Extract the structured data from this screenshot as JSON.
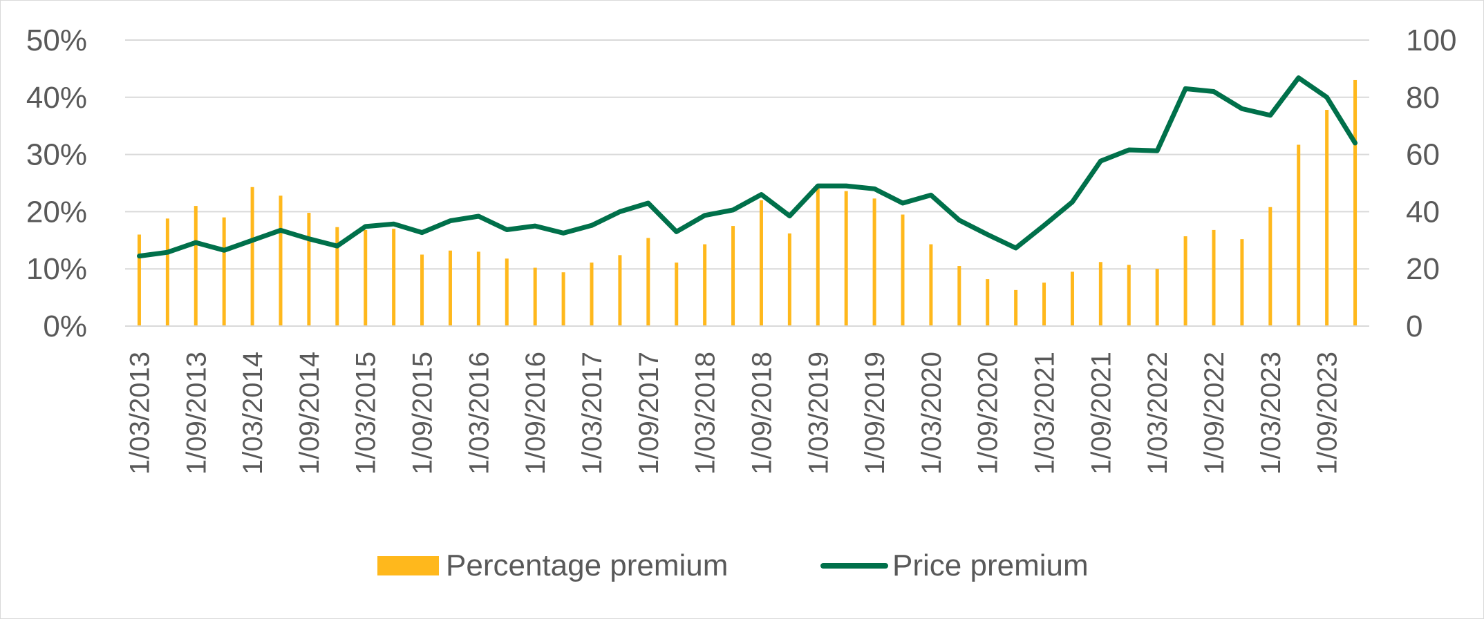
{
  "chart_data": {
    "type": "bar",
    "title": "",
    "xlabel": "",
    "ylabel": "",
    "y2label": "",
    "ylim": [
      0,
      0.5
    ],
    "y2lim": [
      0,
      100
    ],
    "y_ticks": [
      "0%",
      "10%",
      "20%",
      "30%",
      "40%",
      "50%"
    ],
    "y2_ticks": [
      "0",
      "20",
      "40",
      "60",
      "80",
      "100"
    ],
    "grid": true,
    "legend_position": "bottom",
    "x": [
      "1/03/2013",
      "1/06/2013",
      "1/09/2013",
      "1/12/2013",
      "1/03/2014",
      "1/06/2014",
      "1/09/2014",
      "1/12/2014",
      "1/03/2015",
      "1/06/2015",
      "1/09/2015",
      "1/12/2015",
      "1/03/2016",
      "1/06/2016",
      "1/09/2016",
      "1/12/2016",
      "1/03/2017",
      "1/06/2017",
      "1/09/2017",
      "1/12/2017",
      "1/03/2018",
      "1/06/2018",
      "1/09/2018",
      "1/12/2018",
      "1/03/2019",
      "1/06/2019",
      "1/09/2019",
      "1/12/2019",
      "1/03/2020",
      "1/06/2020",
      "1/09/2020",
      "1/12/2020",
      "1/03/2021",
      "1/06/2021",
      "1/09/2021",
      "1/12/2021",
      "1/03/2022",
      "1/06/2022",
      "1/09/2022",
      "1/12/2022",
      "1/03/2023",
      "1/06/2023",
      "1/09/2023",
      "1/12/2023"
    ],
    "x_tick_labels": [
      "1/03/2013",
      "1/09/2013",
      "1/03/2014",
      "1/09/2014",
      "1/03/2015",
      "1/09/2015",
      "1/03/2016",
      "1/09/2016",
      "1/03/2017",
      "1/09/2017",
      "1/03/2018",
      "1/09/2018",
      "1/03/2019",
      "1/09/2019",
      "1/03/2020",
      "1/09/2020",
      "1/03/2021",
      "1/09/2021",
      "1/03/2022",
      "1/09/2022",
      "1/03/2023",
      "1/09/2023"
    ],
    "series": [
      {
        "name": "Percentage premium",
        "type": "bar",
        "axis": "left",
        "color": "#FFB81C",
        "values": [
          0.16,
          0.188,
          0.21,
          0.19,
          0.243,
          0.228,
          0.198,
          0.173,
          0.168,
          0.17,
          0.125,
          0.132,
          0.13,
          0.118,
          0.102,
          0.094,
          0.111,
          0.124,
          0.154,
          0.111,
          0.143,
          0.175,
          0.22,
          0.162,
          0.243,
          0.236,
          0.223,
          0.195,
          0.143,
          0.105,
          0.082,
          0.063,
          0.076,
          0.095,
          0.112,
          0.107,
          0.1,
          0.157,
          0.168,
          0.152,
          0.208,
          0.317,
          0.378,
          0.43
        ]
      },
      {
        "name": "Price premium",
        "type": "line",
        "axis": "right",
        "color": "#00704A",
        "values": [
          24.5,
          25.8,
          29.2,
          26.5,
          30.0,
          33.5,
          30.5,
          28.0,
          34.8,
          35.7,
          32.7,
          36.8,
          38.4,
          33.7,
          35.0,
          32.5,
          35.2,
          40.0,
          43.0,
          33.0,
          38.7,
          40.6,
          46.0,
          38.5,
          49.0,
          49.0,
          48.0,
          43.0,
          45.8,
          37.0,
          32.0,
          27.3,
          35.2,
          43.4,
          57.7,
          61.6,
          61.3,
          83.0,
          82.0,
          76.0,
          73.7,
          86.8,
          80.0,
          64.0
        ]
      }
    ]
  }
}
